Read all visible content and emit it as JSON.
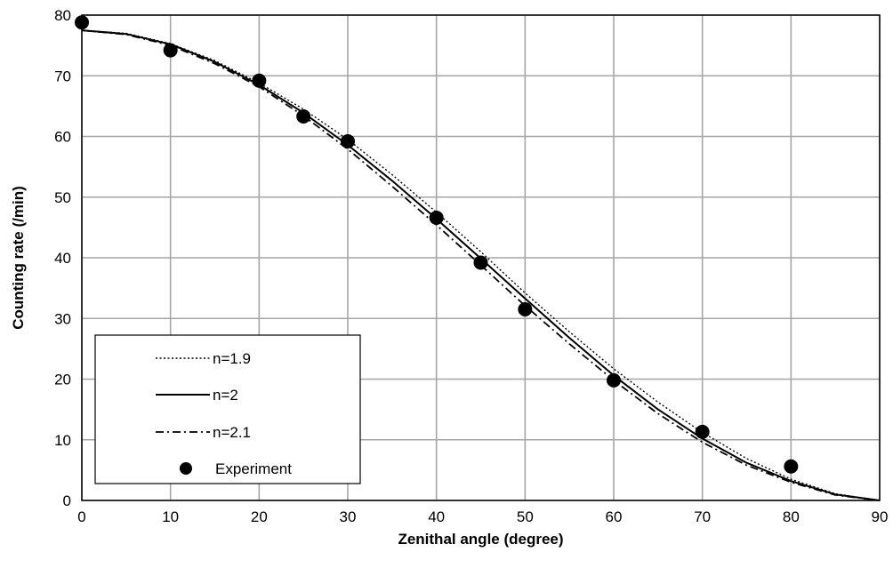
{
  "chart_data": {
    "type": "line",
    "title": "",
    "xlabel": "Zenithal angle (degree)",
    "ylabel": "Counting  rate (/min)",
    "xlim": [
      0,
      90
    ],
    "ylim": [
      0,
      80
    ],
    "xticks": [
      0,
      10,
      20,
      30,
      40,
      50,
      60,
      70,
      80,
      90
    ],
    "yticks": [
      0,
      10,
      20,
      30,
      40,
      50,
      60,
      70,
      80
    ],
    "grid": true,
    "legend_position": "bottom-left",
    "series": [
      {
        "name": "n=1.9",
        "style": "dotted",
        "x": [
          0,
          5,
          10,
          15,
          20,
          25,
          30,
          35,
          40,
          45,
          50,
          55,
          60,
          65,
          70,
          75,
          80,
          85,
          90
        ],
        "y": [
          77.5,
          77.0,
          75.3,
          72.5,
          68.8,
          64.5,
          59.5,
          53.7,
          47.5,
          41.0,
          34.2,
          27.8,
          21.7,
          16.2,
          11.2,
          6.9,
          3.5,
          1.1,
          0
        ]
      },
      {
        "name": "n=2",
        "style": "solid",
        "x": [
          0,
          5,
          10,
          15,
          20,
          25,
          30,
          35,
          40,
          45,
          50,
          55,
          60,
          65,
          70,
          75,
          80,
          85,
          90
        ],
        "y": [
          77.5,
          76.9,
          75.2,
          72.3,
          68.5,
          63.9,
          58.6,
          52.7,
          46.4,
          39.9,
          33.3,
          26.8,
          20.6,
          15.0,
          10.2,
          6.2,
          3.2,
          1.0,
          0
        ]
      },
      {
        "name": "n=2.1",
        "style": "dash-dot",
        "x": [
          0,
          5,
          10,
          15,
          20,
          25,
          30,
          35,
          40,
          45,
          50,
          55,
          60,
          65,
          70,
          75,
          80,
          85,
          90
        ],
        "y": [
          77.5,
          76.8,
          75.0,
          72.0,
          68.2,
          63.4,
          57.9,
          51.8,
          45.4,
          38.8,
          32.1,
          25.8,
          19.8,
          14.3,
          9.6,
          5.8,
          3.0,
          0.9,
          0
        ]
      },
      {
        "name": "Experiment",
        "style": "markers",
        "x": [
          0,
          10,
          20,
          25,
          30,
          40,
          45,
          50,
          60,
          70,
          80
        ],
        "y": [
          78.8,
          74.2,
          69.2,
          63.3,
          59.2,
          46.6,
          39.2,
          31.5,
          19.8,
          11.3,
          5.6
        ]
      }
    ]
  },
  "colors": {
    "line": "#000000",
    "grid": "#a6a6a6",
    "background": "#ffffff"
  }
}
